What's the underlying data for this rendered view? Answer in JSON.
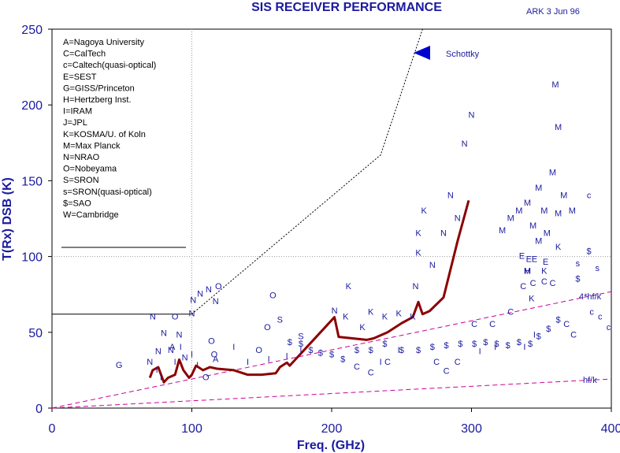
{
  "chart_data": {
    "type": "scatter",
    "title": "SIS RECEIVER PERFORMANCE",
    "stamp": "ARK  3 Jun 96",
    "xlabel": "Freq. (GHz)",
    "ylabel": "T(Rx) DSB (K)",
    "xlim": [
      0,
      400
    ],
    "ylim": [
      0,
      250
    ],
    "xticks": [
      0,
      100,
      200,
      300,
      400
    ],
    "yticks": [
      0,
      50,
      100,
      150,
      200,
      250
    ],
    "grid": "dotted at x=100 and y=100",
    "legend_position": "top-left",
    "legend": [
      "A=Nagoya University",
      "C=CalTech",
      "c=Caltech(quasi-optical)",
      "E=SEST",
      "G=GISS/Princeton",
      "H=Hertzberg Inst.",
      "I=IRAM",
      "J=JPL",
      "K=KOSMA/U. of Koln",
      "M=Max Planck",
      "N=NRAO",
      "O=Nobeyama",
      "S=SRON",
      "s=SRON(quasi-optical)",
      "$=SAO",
      "W=Cambridge"
    ],
    "lines": {
      "schottky": {
        "label": "Schottky",
        "x": [
          0,
          100,
          235,
          265
        ],
        "y": [
          62,
          62,
          167,
          250
        ]
      },
      "hf_k": {
        "label": "hf/k",
        "x": [
          0,
          400
        ],
        "y": [
          0,
          19.2
        ]
      },
      "four_hf_k": {
        "label": "4*hf/k",
        "x": [
          0,
          400
        ],
        "y": [
          0,
          76.8
        ]
      },
      "best_curve": {
        "x": [
          70,
          72,
          76,
          80,
          83,
          88,
          91,
          94,
          98,
          100,
          103,
          108,
          113,
          118,
          130,
          140,
          150,
          160,
          163,
          168,
          170,
          202,
          205,
          215,
          225,
          230,
          240,
          250,
          258,
          262,
          265,
          270,
          280,
          290,
          298
        ],
        "y": [
          20,
          25,
          27,
          17,
          20,
          22,
          32,
          25,
          20,
          22,
          28,
          25,
          27,
          26,
          25,
          22,
          22,
          23,
          27,
          30,
          28,
          60,
          47,
          46,
          45,
          46,
          50,
          56,
          60,
          70,
          62,
          64,
          73,
          110,
          137
        ]
      }
    },
    "markers": [
      {
        "l": "G",
        "x": 48,
        "y": 28
      },
      {
        "l": "N",
        "x": 70,
        "y": 30
      },
      {
        "l": "N",
        "x": 72,
        "y": 60
      },
      {
        "l": "N",
        "x": 76,
        "y": 37
      },
      {
        "l": "N",
        "x": 80,
        "y": 49
      },
      {
        "l": "N",
        "x": 85,
        "y": 38
      },
      {
        "l": "N",
        "x": 91,
        "y": 48
      },
      {
        "l": "N",
        "x": 95,
        "y": 33
      },
      {
        "l": "N",
        "x": 100,
        "y": 62
      },
      {
        "l": "N",
        "x": 101,
        "y": 71
      },
      {
        "l": "N",
        "x": 106,
        "y": 75
      },
      {
        "l": "N",
        "x": 112,
        "y": 78
      },
      {
        "l": "N",
        "x": 117,
        "y": 70
      },
      {
        "l": "O",
        "x": 88,
        "y": 60
      },
      {
        "l": "O",
        "x": 114,
        "y": 44
      },
      {
        "l": "O",
        "x": 119,
        "y": 80
      },
      {
        "l": "O",
        "x": 116,
        "y": 35
      },
      {
        "l": "O",
        "x": 110,
        "y": 20
      },
      {
        "l": "O",
        "x": 148,
        "y": 38
      },
      {
        "l": "O",
        "x": 154,
        "y": 53
      },
      {
        "l": "O",
        "x": 158,
        "y": 74
      },
      {
        "l": "A",
        "x": 117,
        "y": 32
      },
      {
        "l": "A",
        "x": 86,
        "y": 40
      },
      {
        "l": "I",
        "x": 75,
        "y": 25
      },
      {
        "l": "I",
        "x": 78,
        "y": 20
      },
      {
        "l": "I",
        "x": 88,
        "y": 30
      },
      {
        "l": "I",
        "x": 92,
        "y": 40
      },
      {
        "l": "I",
        "x": 100,
        "y": 35
      },
      {
        "l": "I",
        "x": 104,
        "y": 28
      },
      {
        "l": "I",
        "x": 130,
        "y": 40
      },
      {
        "l": "I",
        "x": 140,
        "y": 30
      },
      {
        "l": "I",
        "x": 155,
        "y": 32
      },
      {
        "l": "I",
        "x": 168,
        "y": 34
      },
      {
        "l": "I",
        "x": 178,
        "y": 38
      },
      {
        "l": "I",
        "x": 235,
        "y": 30
      },
      {
        "l": "I",
        "x": 248,
        "y": 38
      },
      {
        "l": "I",
        "x": 306,
        "y": 37
      },
      {
        "l": "I",
        "x": 317,
        "y": 40
      },
      {
        "l": "I",
        "x": 338,
        "y": 40
      },
      {
        "l": "I",
        "x": 345,
        "y": 48
      },
      {
        "l": "S",
        "x": 163,
        "y": 58
      },
      {
        "l": "S",
        "x": 178,
        "y": 47
      },
      {
        "l": "$",
        "x": 170,
        "y": 43
      },
      {
        "l": "$",
        "x": 178,
        "y": 42
      },
      {
        "l": "$",
        "x": 185,
        "y": 38
      },
      {
        "l": "$",
        "x": 192,
        "y": 36
      },
      {
        "l": "$",
        "x": 200,
        "y": 35
      },
      {
        "l": "$",
        "x": 208,
        "y": 32
      },
      {
        "l": "$",
        "x": 218,
        "y": 38
      },
      {
        "l": "$",
        "x": 228,
        "y": 38
      },
      {
        "l": "$",
        "x": 238,
        "y": 42
      },
      {
        "l": "$",
        "x": 250,
        "y": 38
      },
      {
        "l": "$",
        "x": 262,
        "y": 38
      },
      {
        "l": "$",
        "x": 272,
        "y": 40
      },
      {
        "l": "$",
        "x": 282,
        "y": 41
      },
      {
        "l": "$",
        "x": 292,
        "y": 42
      },
      {
        "l": "$",
        "x": 302,
        "y": 42
      },
      {
        "l": "$",
        "x": 310,
        "y": 43
      },
      {
        "l": "$",
        "x": 318,
        "y": 42
      },
      {
        "l": "$",
        "x": 326,
        "y": 41
      },
      {
        "l": "$",
        "x": 334,
        "y": 43
      },
      {
        "l": "$",
        "x": 342,
        "y": 42
      },
      {
        "l": "$",
        "x": 348,
        "y": 47
      },
      {
        "l": "$",
        "x": 355,
        "y": 52
      },
      {
        "l": "$",
        "x": 362,
        "y": 58
      },
      {
        "l": "$",
        "x": 376,
        "y": 85
      },
      {
        "l": "$",
        "x": 384,
        "y": 103
      },
      {
        "l": "K",
        "x": 210,
        "y": 60
      },
      {
        "l": "K",
        "x": 212,
        "y": 80
      },
      {
        "l": "K",
        "x": 222,
        "y": 53
      },
      {
        "l": "K",
        "x": 228,
        "y": 63
      },
      {
        "l": "K",
        "x": 238,
        "y": 60
      },
      {
        "l": "K",
        "x": 248,
        "y": 62
      },
      {
        "l": "K",
        "x": 258,
        "y": 60
      },
      {
        "l": "K",
        "x": 262,
        "y": 102
      },
      {
        "l": "K",
        "x": 262,
        "y": 115
      },
      {
        "l": "K",
        "x": 266,
        "y": 130
      },
      {
        "l": "K",
        "x": 343,
        "y": 72
      },
      {
        "l": "K",
        "x": 352,
        "y": 90
      },
      {
        "l": "K",
        "x": 362,
        "y": 106
      },
      {
        "l": "N",
        "x": 202,
        "y": 64
      },
      {
        "l": "N",
        "x": 260,
        "y": 80
      },
      {
        "l": "N",
        "x": 272,
        "y": 94
      },
      {
        "l": "N",
        "x": 280,
        "y": 115
      },
      {
        "l": "N",
        "x": 285,
        "y": 140
      },
      {
        "l": "N",
        "x": 290,
        "y": 125
      },
      {
        "l": "N",
        "x": 295,
        "y": 174
      },
      {
        "l": "N",
        "x": 300,
        "y": 193
      },
      {
        "l": "C",
        "x": 218,
        "y": 27
      },
      {
        "l": "C",
        "x": 228,
        "y": 23
      },
      {
        "l": "C",
        "x": 240,
        "y": 30
      },
      {
        "l": "C",
        "x": 275,
        "y": 30
      },
      {
        "l": "C",
        "x": 282,
        "y": 24
      },
      {
        "l": "C",
        "x": 290,
        "y": 30
      },
      {
        "l": "C",
        "x": 302,
        "y": 55
      },
      {
        "l": "C",
        "x": 315,
        "y": 55
      },
      {
        "l": "C",
        "x": 328,
        "y": 63
      },
      {
        "l": "C",
        "x": 337,
        "y": 80
      },
      {
        "l": "C",
        "x": 344,
        "y": 82
      },
      {
        "l": "C",
        "x": 352,
        "y": 83
      },
      {
        "l": "C",
        "x": 358,
        "y": 82
      },
      {
        "l": "C",
        "x": 368,
        "y": 55
      },
      {
        "l": "C",
        "x": 373,
        "y": 48
      },
      {
        "l": "c",
        "x": 386,
        "y": 63
      },
      {
        "l": "c",
        "x": 392,
        "y": 60
      },
      {
        "l": "c",
        "x": 398,
        "y": 53
      },
      {
        "l": "c",
        "x": 384,
        "y": 140
      },
      {
        "l": "M",
        "x": 322,
        "y": 117
      },
      {
        "l": "M",
        "x": 328,
        "y": 125
      },
      {
        "l": "M",
        "x": 334,
        "y": 130
      },
      {
        "l": "M",
        "x": 340,
        "y": 135
      },
      {
        "l": "M",
        "x": 344,
        "y": 120
      },
      {
        "l": "M",
        "x": 348,
        "y": 145
      },
      {
        "l": "M",
        "x": 352,
        "y": 130
      },
      {
        "l": "M",
        "x": 358,
        "y": 155
      },
      {
        "l": "M",
        "x": 362,
        "y": 128
      },
      {
        "l": "M",
        "x": 366,
        "y": 140
      },
      {
        "l": "M",
        "x": 340,
        "y": 90
      },
      {
        "l": "M",
        "x": 348,
        "y": 110
      },
      {
        "l": "M",
        "x": 354,
        "y": 115
      },
      {
        "l": "M",
        "x": 360,
        "y": 213
      },
      {
        "l": "M",
        "x": 362,
        "y": 185
      },
      {
        "l": "M",
        "x": 372,
        "y": 130
      },
      {
        "l": "E",
        "x": 336,
        "y": 100
      },
      {
        "l": "E",
        "x": 345,
        "y": 98
      },
      {
        "l": "E",
        "x": 353,
        "y": 96
      },
      {
        "l": "E",
        "x": 341,
        "y": 98
      },
      {
        "l": "H",
        "x": 340,
        "y": 90
      },
      {
        "l": "s",
        "x": 376,
        "y": 95
      },
      {
        "l": "s",
        "x": 390,
        "y": 92
      }
    ]
  },
  "annotations": {
    "schottky_label": "Schottky",
    "hf_k_label": "hf/k",
    "four_hf_k_label": "4*hf/k"
  }
}
